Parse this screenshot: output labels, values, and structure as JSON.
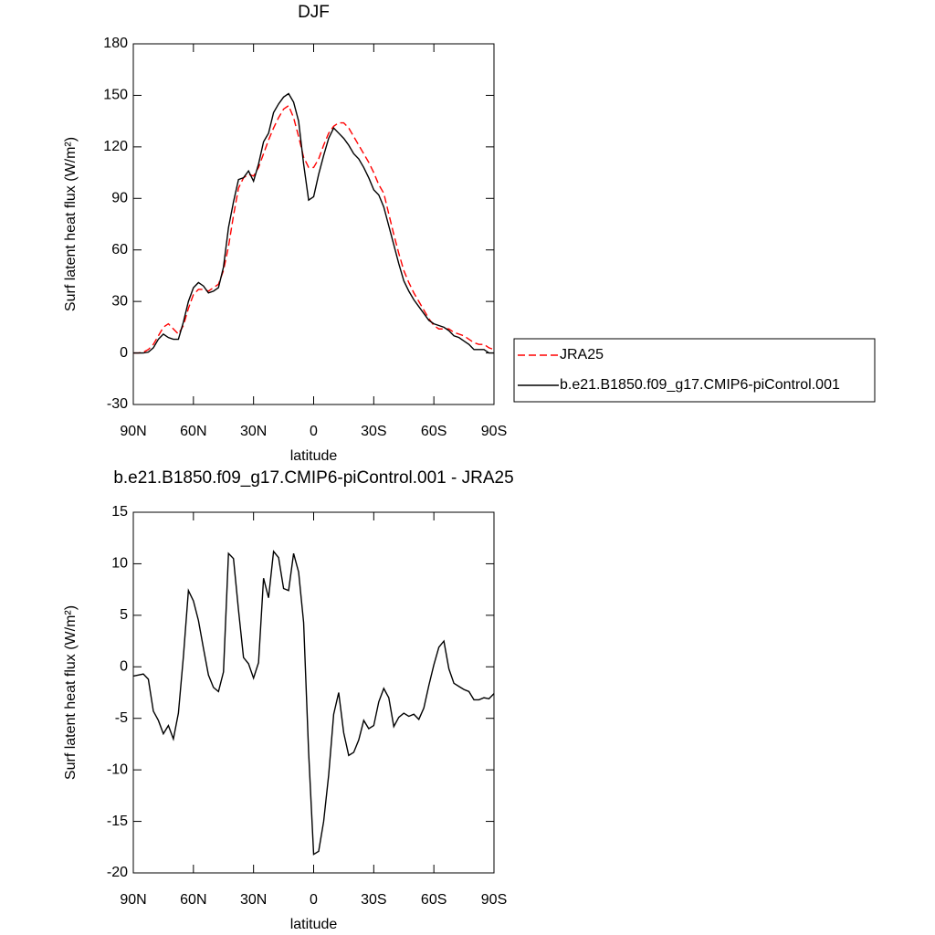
{
  "chart_data": [
    {
      "type": "line",
      "title": "DJF",
      "xlabel": "latitude",
      "ylabel": "Surf latent heat flux (W/m²)",
      "x": [
        90,
        87.5,
        85,
        82.5,
        80,
        77.5,
        75,
        72.5,
        70,
        67.5,
        65,
        62.5,
        60,
        57.5,
        55,
        52.5,
        50,
        47.5,
        45,
        42.5,
        40,
        37.5,
        35,
        32.5,
        30,
        27.5,
        25,
        22.5,
        20,
        17.5,
        15,
        12.5,
        10,
        7.5,
        5,
        2.5,
        0,
        -2.5,
        -5,
        -7.5,
        -10,
        -12.5,
        -15,
        -17.5,
        -20,
        -22.5,
        -25,
        -27.5,
        -30,
        -32.5,
        -35,
        -37.5,
        -40,
        -42.5,
        -45,
        -47.5,
        -50,
        -52.5,
        -55,
        -57.5,
        -60,
        -62.5,
        -65,
        -67.5,
        -70,
        -72.5,
        -75,
        -77.5,
        -80,
        -82.5,
        -85,
        -87.5,
        -90
      ],
      "series": [
        {
          "name": "JRA25",
          "color": "#ff0000",
          "line_style": "dashed",
          "values": [
            0,
            0,
            0.5,
            2,
            5,
            10,
            15,
            17,
            14,
            11,
            16,
            26,
            34,
            37,
            37,
            36,
            38,
            40,
            48,
            62,
            80,
            96,
            102,
            104,
            103,
            108,
            116,
            124,
            131,
            137,
            142,
            144,
            137,
            126,
            114,
            108,
            108,
            113,
            121,
            128,
            132,
            134,
            134,
            131,
            126,
            121,
            116,
            111,
            105,
            98,
            93,
            81,
            69,
            58,
            48,
            41,
            35,
            30,
            25,
            20,
            16,
            14,
            14,
            14,
            12,
            11,
            10,
            8,
            6,
            5,
            5,
            3,
            2
          ]
        },
        {
          "name": "b.e21.B1850.f09_g17.CMIP6-piControl.001",
          "color": "#000000",
          "line_style": "solid",
          "values": [
            0,
            0,
            0,
            0.5,
            3,
            8,
            11,
            9,
            8,
            8,
            18,
            30,
            38,
            41,
            39,
            35,
            36,
            38,
            50,
            73,
            88,
            101,
            102,
            106,
            100,
            110,
            123,
            128,
            140,
            145,
            149,
            151,
            146,
            135,
            110,
            89,
            91,
            104,
            115,
            125,
            131,
            128,
            125,
            121,
            116,
            113,
            108,
            102,
            95,
            92,
            85,
            74,
            63,
            52,
            42,
            36,
            31,
            27,
            23,
            19,
            17,
            16,
            15,
            13,
            10,
            9,
            7,
            5,
            2,
            2,
            2,
            0,
            0
          ]
        }
      ],
      "xlim": [
        90,
        -90
      ],
      "xticks": [
        {
          "value": 90,
          "label": "90N"
        },
        {
          "value": 60,
          "label": "60N"
        },
        {
          "value": 30,
          "label": "30N"
        },
        0,
        {
          "value": -30,
          "label": "30S"
        },
        {
          "value": -60,
          "label": "60S"
        },
        {
          "value": -90,
          "label": "90S"
        }
      ],
      "ylim": [
        -30,
        180
      ],
      "yticks": [
        -30,
        0,
        30,
        60,
        90,
        120,
        150,
        180
      ],
      "legend": "outside right"
    },
    {
      "type": "line",
      "title": "b.e21.B1850.f09_g17.CMIP6-piControl.001 - JRA25",
      "xlabel": "latitude",
      "ylabel": "Surf latent heat flux (W/m²)",
      "x": [
        90,
        87.5,
        85,
        82.5,
        80,
        77.5,
        75,
        72.5,
        70,
        67.5,
        65,
        62.5,
        60,
        57.5,
        55,
        52.5,
        50,
        47.5,
        45,
        42.5,
        40,
        37.5,
        35,
        32.5,
        30,
        27.5,
        25,
        22.5,
        20,
        17.5,
        15,
        12.5,
        10,
        7.5,
        5,
        2.5,
        0,
        -2.5,
        -5,
        -7.5,
        -10,
        -12.5,
        -15,
        -17.5,
        -20,
        -22.5,
        -25,
        -27.5,
        -30,
        -32.5,
        -35,
        -37.5,
        -40,
        -42.5,
        -45,
        -47.5,
        -50,
        -52.5,
        -55,
        -57.5,
        -60,
        -62.5,
        -65,
        -67.5,
        -70,
        -72.5,
        -75,
        -77.5,
        -80,
        -82.5,
        -85,
        -87.5,
        -90
      ],
      "values": [
        -0.9,
        -0.8,
        -0.7,
        -1.2,
        -4.3,
        -5.2,
        -6.5,
        -5.7,
        -7,
        -4.5,
        1,
        7.4,
        6.4,
        4.5,
        1.8,
        -0.8,
        -2,
        -2.4,
        -0.5,
        11,
        10.5,
        5.5,
        0.9,
        0.3,
        -1.1,
        0.4,
        8.6,
        6.7,
        11.2,
        10.6,
        7.6,
        7.4,
        11,
        9.2,
        4.3,
        -8.3,
        -18.2,
        -17.9,
        -15,
        -10.5,
        -4.6,
        -2.5,
        -6.4,
        -8.6,
        -8.3,
        -7.1,
        -5.2,
        -6,
        -5.7,
        -3.4,
        -2.1,
        -3,
        -5.8,
        -4.9,
        -4.5,
        -4.8,
        -4.6,
        -5.1,
        -4,
        -1.8,
        0.2,
        1.9,
        2.5,
        -0.2,
        -1.6,
        -1.9,
        -2.2,
        -2.4,
        -3.2,
        -3.2,
        -3,
        -3.1,
        -2.6
      ],
      "color": "#000000",
      "xlim": [
        90,
        -90
      ],
      "xticks": [
        {
          "value": 90,
          "label": "90N"
        },
        {
          "value": 60,
          "label": "60N"
        },
        {
          "value": 30,
          "label": "30N"
        },
        0,
        {
          "value": -30,
          "label": "30S"
        },
        {
          "value": -60,
          "label": "60S"
        },
        {
          "value": -90,
          "label": "90S"
        }
      ],
      "ylim": [
        -20,
        15
      ],
      "yticks": [
        -20,
        -15,
        -10,
        -5,
        0,
        5,
        10,
        15
      ]
    }
  ]
}
